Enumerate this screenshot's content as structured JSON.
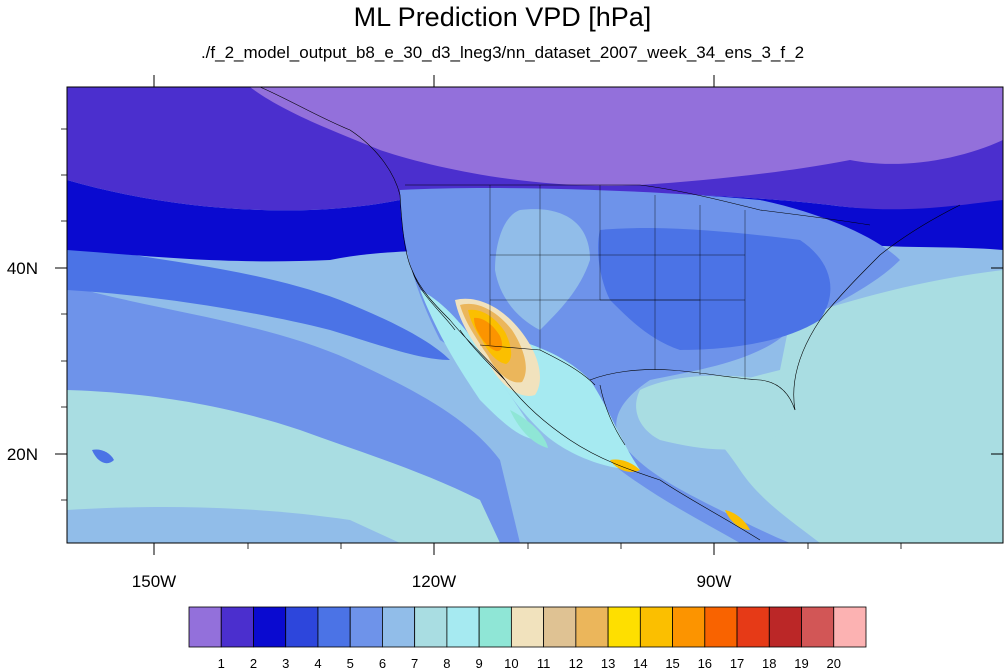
{
  "title": "ML Prediction VPD [hPa]",
  "subtitle": "./f_2_model_output_b8_e_30_d3_lneg3/nn_dataset_2007_week_34_ens_3_f_2",
  "map": {
    "lon_range": [
      -160,
      -62
    ],
    "lat_range": [
      11,
      60
    ],
    "lon_ticks": [
      {
        "value": -150,
        "label": "150W"
      },
      {
        "value": -120,
        "label": "120W"
      },
      {
        "value": -90,
        "label": "90W"
      }
    ],
    "lat_ticks": [
      {
        "value": 40,
        "label": "40N"
      },
      {
        "value": 20,
        "label": "20N"
      }
    ]
  },
  "colorbar": {
    "labels": [
      "1",
      "2",
      "3",
      "4",
      "5",
      "6",
      "7",
      "8",
      "9",
      "10",
      "11",
      "12",
      "13",
      "14",
      "15",
      "16",
      "17",
      "18",
      "19",
      "20"
    ],
    "colors": [
      "#9370db",
      "#4b2fce",
      "#0a0ad0",
      "#2d46dc",
      "#4b73e6",
      "#6e93ea",
      "#91bde9",
      "#a9dde2",
      "#a6eaf1",
      "#8fe6d6",
      "#f1e2bd",
      "#dfc293",
      "#ebb65b",
      "#fedf00",
      "#fbbf00",
      "#fc9400",
      "#f96300",
      "#e63a17",
      "#bb2727",
      "#d25656",
      "#fcb2b2"
    ]
  }
}
